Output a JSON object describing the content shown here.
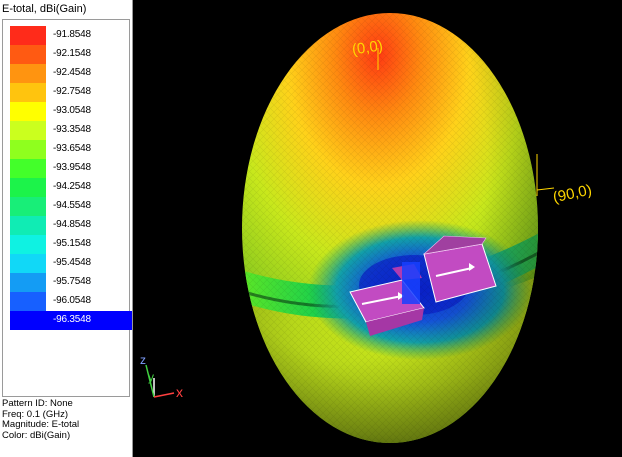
{
  "legend": {
    "title": "E-total, dBi(Gain)",
    "entries": [
      {
        "value": "-91.8548",
        "color": "#ff2b1a"
      },
      {
        "value": "-92.1548",
        "color": "#ff5a12"
      },
      {
        "value": "-92.4548",
        "color": "#ff9410"
      },
      {
        "value": "-92.7548",
        "color": "#ffc40e"
      },
      {
        "value": "-93.0548",
        "color": "#ffff00"
      },
      {
        "value": "-93.3548",
        "color": "#cbff1e"
      },
      {
        "value": "-93.6548",
        "color": "#8fff1e"
      },
      {
        "value": "-93.9548",
        "color": "#43ff2a"
      },
      {
        "value": "-94.2548",
        "color": "#1cf34a"
      },
      {
        "value": "-94.5548",
        "color": "#18ee78"
      },
      {
        "value": "-94.8548",
        "color": "#10ecb4"
      },
      {
        "value": "-95.1548",
        "color": "#0ff2e2"
      },
      {
        "value": "-95.4548",
        "color": "#11d8f7"
      },
      {
        "value": "-95.7548",
        "color": "#149cf4"
      },
      {
        "value": "-96.0548",
        "color": "#1760ff"
      },
      {
        "value": "-96.3548",
        "color": "#0000ff"
      }
    ],
    "selected_index": 15,
    "info": {
      "pattern_id": "Pattern ID: None",
      "freq": "Freq: 0.1 (GHz)",
      "magnitude": "Magnitude: E-total",
      "color": "Color: dBi(Gain)"
    }
  },
  "viewport": {
    "label_top": "(0,0)",
    "label_side": "(90,0)",
    "axis_labels": {
      "x": "x",
      "y": "y",
      "z": "z"
    },
    "label_color": "#ffd700",
    "background": "#000000"
  }
}
